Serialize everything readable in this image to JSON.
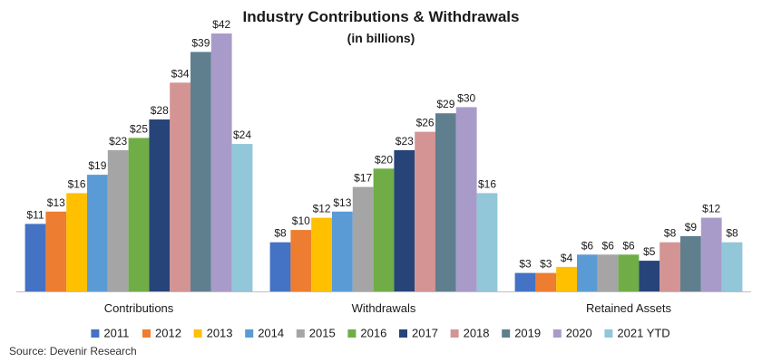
{
  "chart_data": {
    "type": "bar",
    "title": "Industry Contributions & Withdrawals",
    "subtitle": "(in billions)",
    "categories": [
      "Contributions",
      "Withdrawals",
      "Retained Assets"
    ],
    "series": [
      {
        "name": "2011",
        "color": "#4472c4",
        "values": [
          11,
          8,
          3
        ]
      },
      {
        "name": "2012",
        "color": "#ed7d31",
        "values": [
          13,
          10,
          3
        ]
      },
      {
        "name": "2013",
        "color": "#ffc000",
        "values": [
          16,
          12,
          4
        ]
      },
      {
        "name": "2014",
        "color": "#5b9bd5",
        "values": [
          19,
          13,
          6
        ]
      },
      {
        "name": "2015",
        "color": "#a5a5a5",
        "values": [
          23,
          17,
          6
        ]
      },
      {
        "name": "2016",
        "color": "#70ad47",
        "values": [
          25,
          20,
          6
        ]
      },
      {
        "name": "2017",
        "color": "#264478",
        "values": [
          28,
          23,
          5
        ]
      },
      {
        "name": "2018",
        "color": "#d49494",
        "values": [
          34,
          26,
          8
        ]
      },
      {
        "name": "2019",
        "color": "#5f7f8f",
        "values": [
          39,
          29,
          9
        ]
      },
      {
        "name": "2020",
        "color": "#a99bc9",
        "values": [
          42,
          30,
          12
        ]
      },
      {
        "name": "2021 YTD",
        "color": "#92c6d9",
        "values": [
          24,
          16,
          8
        ]
      }
    ],
    "value_prefix": "$",
    "ylim": [
      0,
      42
    ],
    "grid": false,
    "legend_position": "bottom",
    "source": "Source: Devenir Research"
  }
}
